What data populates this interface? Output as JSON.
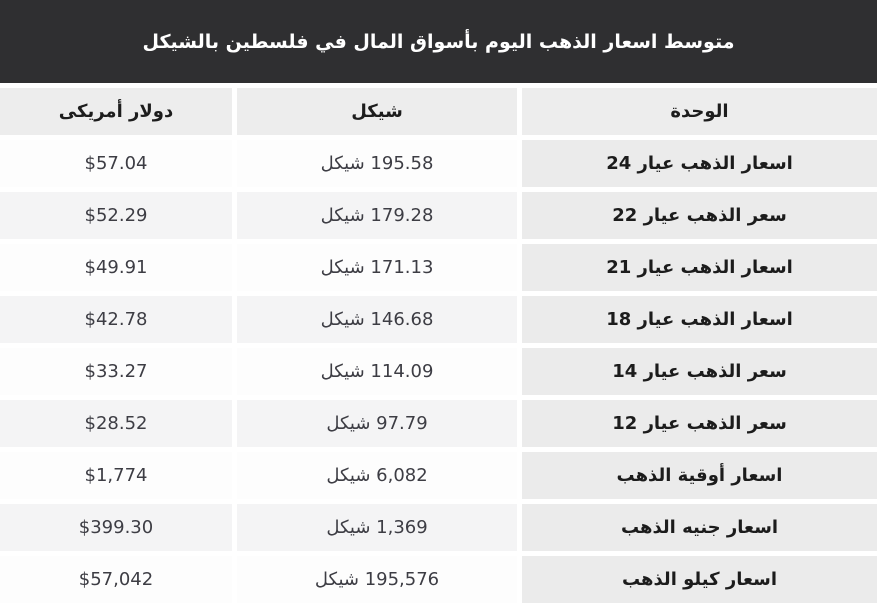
{
  "header": {
    "title": "متوسط اسعار الذهب اليوم بأسواق المال في فلسطين بالشيكل"
  },
  "colors": {
    "title_bar_bg": "#2f2f31",
    "title_text": "#ffffff",
    "header_row_bg": "#ededed",
    "unit_column_bg": "#ebebeb",
    "row_odd_bg": "#fdfdfd",
    "row_even_bg": "#f4f4f5",
    "label_text": "#1c1c1c",
    "value_text": "#3d3d44"
  },
  "chart_data": {
    "type": "table",
    "title": "متوسط اسعار الذهب اليوم بأسواق المال في فلسطين بالشيكل",
    "columns": [
      "الوحدة",
      "شيكل",
      "دولار أمريكى"
    ],
    "rows": [
      {
        "unit": "اسعار الذهب عيار 24",
        "shekel": "195.58 شيكل",
        "dollar": "$57.04",
        "shekel_value": 195.58,
        "dollar_value": 57.04
      },
      {
        "unit": "سعر الذهب عيار 22",
        "shekel": "179.28 شيكل",
        "dollar": "$52.29",
        "shekel_value": 179.28,
        "dollar_value": 52.29
      },
      {
        "unit": "اسعار الذهب عيار 21",
        "shekel": "171.13 شيكل",
        "dollar": "$49.91",
        "shekel_value": 171.13,
        "dollar_value": 49.91
      },
      {
        "unit": "اسعار الذهب عيار 18",
        "shekel": "146.68 شيكل",
        "dollar": "$42.78",
        "shekel_value": 146.68,
        "dollar_value": 42.78
      },
      {
        "unit": "سعر الذهب عيار 14",
        "shekel": "114.09 شيكل",
        "dollar": "$33.27",
        "shekel_value": 114.09,
        "dollar_value": 33.27
      },
      {
        "unit": "سعر الذهب عيار 12",
        "shekel": "97.79 شيكل",
        "dollar": "$28.52",
        "shekel_value": 97.79,
        "dollar_value": 28.52
      },
      {
        "unit": "اسعار أوقية الذهب",
        "shekel": "6,082 شيكل",
        "dollar": "$1,774",
        "shekel_value": 6082,
        "dollar_value": 1774
      },
      {
        "unit": "اسعار جنيه الذهب",
        "shekel": "1,369 شيكل",
        "dollar": "$399.30",
        "shekel_value": 1369,
        "dollar_value": 399.3
      },
      {
        "unit": "اسعار كيلو الذهب",
        "shekel": "195,576 شيكل",
        "dollar": "$57,042",
        "shekel_value": 195576,
        "dollar_value": 57042
      }
    ]
  }
}
